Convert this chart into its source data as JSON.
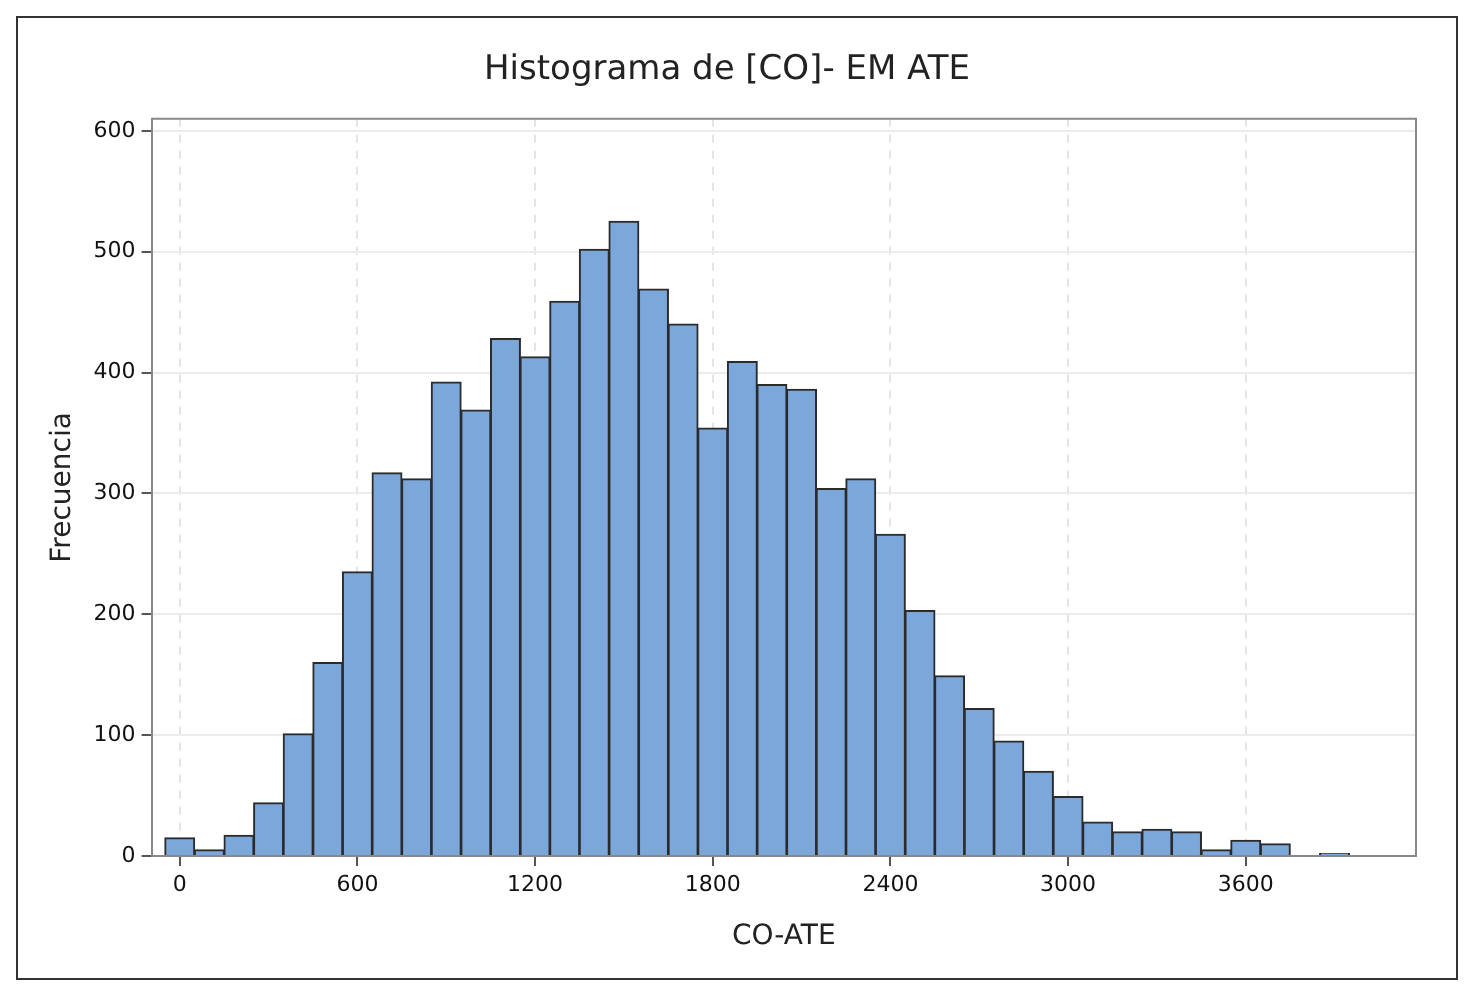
{
  "chart_data": {
    "type": "histogram",
    "title": "Histograma de [CO]- EM ATE",
    "xlabel": "CO-ATE",
    "ylabel": "Frecuencia",
    "bins": [
      -50,
      50,
      150,
      250,
      350,
      450,
      550,
      650,
      750,
      850,
      950,
      1050,
      1150,
      1250,
      1350,
      1450,
      1550,
      1650,
      1750,
      1850,
      1950,
      2050,
      2150,
      2250,
      2350,
      2450,
      2550,
      2650,
      2750,
      2850,
      2950,
      3050,
      3150,
      3250,
      3350,
      3450,
      3550,
      3650,
      3750,
      3850,
      3950
    ],
    "values": [
      15,
      5,
      17,
      44,
      101,
      160,
      235,
      317,
      312,
      392,
      369,
      428,
      413,
      459,
      502,
      525,
      469,
      440,
      354,
      409,
      390,
      386,
      304,
      312,
      266,
      203,
      149,
      122,
      95,
      70,
      49,
      28,
      20,
      22,
      20,
      5,
      13,
      10,
      0,
      2
    ],
    "color": "#7ba7db",
    "xlim": [
      -95,
      4175
    ],
    "xticks": [
      0,
      600,
      1200,
      1800,
      2400,
      3000,
      3600
    ],
    "ylim": [
      0,
      610
    ],
    "yticks": [
      0,
      100,
      200,
      300,
      400,
      500,
      600
    ],
    "grid": true
  }
}
